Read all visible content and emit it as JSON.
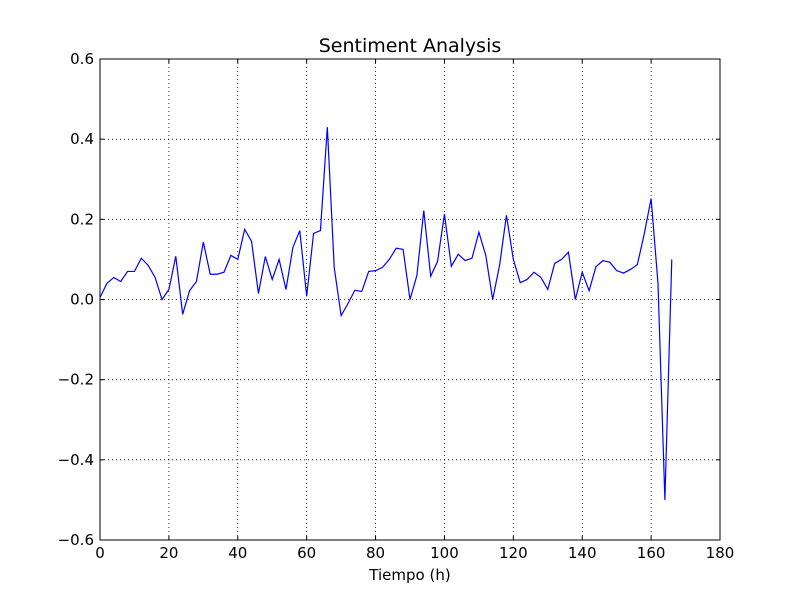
{
  "chart_data": {
    "type": "line",
    "title": "Sentiment Analysis",
    "xlabel": "Tiempo (h)",
    "ylabel": "",
    "xlim": [
      0,
      180
    ],
    "ylim": [
      -0.6,
      0.6
    ],
    "xticks": [
      0,
      20,
      40,
      60,
      80,
      100,
      120,
      140,
      160,
      180
    ],
    "yticks": [
      -0.6,
      -0.4,
      -0.2,
      0.0,
      0.2,
      0.4,
      0.6
    ],
    "xtick_labels": [
      "0",
      "20",
      "40",
      "60",
      "80",
      "100",
      "120",
      "140",
      "160",
      "180"
    ],
    "ytick_labels": [
      "−0.6",
      "−0.4",
      "−0.2",
      "0.0",
      "0.2",
      "0.4",
      "0.6"
    ],
    "grid": true,
    "line_color": "#0000ff",
    "series": [
      {
        "x": [
          0,
          2,
          4,
          6,
          8,
          10,
          12,
          14,
          16,
          18,
          20,
          22,
          24,
          26,
          28,
          30,
          32,
          34,
          36,
          38,
          40,
          42,
          44,
          46,
          48,
          50,
          52,
          54,
          56,
          58,
          60,
          62,
          64,
          66,
          68,
          70,
          72,
          74,
          76,
          78,
          80,
          82,
          84,
          86,
          88,
          90,
          92,
          94,
          96,
          98,
          100,
          102,
          104,
          106,
          108,
          110,
          112,
          114,
          116,
          118,
          120,
          122,
          124,
          126,
          128,
          130,
          132,
          134,
          136,
          138,
          140,
          142,
          144,
          146,
          148,
          150,
          152,
          154,
          156,
          158,
          160,
          162,
          164,
          166
        ],
        "y": [
          0.005,
          0.04,
          0.055,
          0.045,
          0.07,
          0.07,
          0.103,
          0.085,
          0.055,
          0.0,
          0.025,
          0.108,
          -0.037,
          0.022,
          0.045,
          0.143,
          0.063,
          0.063,
          0.068,
          0.11,
          0.1,
          0.175,
          0.145,
          0.015,
          0.107,
          0.05,
          0.1,
          0.025,
          0.13,
          0.172,
          0.008,
          0.165,
          0.172,
          0.43,
          0.08,
          -0.04,
          -0.01,
          0.023,
          0.02,
          0.07,
          0.072,
          0.08,
          0.1,
          0.128,
          0.125,
          0.0,
          0.06,
          0.222,
          0.058,
          0.095,
          0.213,
          0.083,
          0.113,
          0.097,
          0.103,
          0.168,
          0.11,
          0.0,
          0.085,
          0.21,
          0.1,
          0.042,
          0.05,
          0.068,
          0.055,
          0.025,
          0.09,
          0.1,
          0.118,
          0.0,
          0.068,
          0.022,
          0.082,
          0.097,
          0.093,
          0.072,
          0.066,
          0.075,
          0.087,
          0.163,
          0.252,
          0.04,
          -0.5,
          0.1
        ]
      }
    ]
  }
}
